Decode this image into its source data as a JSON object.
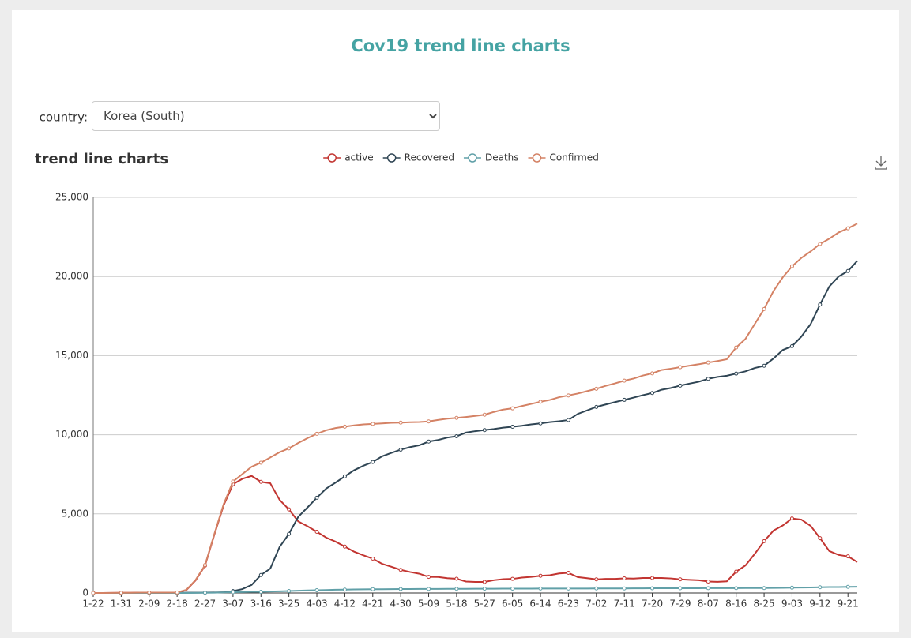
{
  "page": {
    "title": "Cov19 trend line charts",
    "country_label": "country:",
    "country_value": "Korea (South)",
    "chart_heading": "trend line charts"
  },
  "chart_data": {
    "type": "line",
    "categories": [
      "1-22",
      null,
      null,
      "1-31",
      null,
      null,
      "2-09",
      null,
      null,
      "2-18",
      null,
      null,
      "2-27",
      null,
      null,
      "3-07",
      null,
      null,
      "3-16",
      null,
      null,
      "3-25",
      null,
      null,
      "4-03",
      null,
      null,
      "4-12",
      null,
      null,
      "4-21",
      null,
      null,
      "4-30",
      null,
      null,
      "5-09",
      null,
      null,
      "5-18",
      null,
      null,
      "5-27",
      null,
      null,
      "6-05",
      null,
      null,
      "6-14",
      null,
      null,
      "6-23",
      null,
      null,
      "7-02",
      null,
      null,
      "7-11",
      null,
      null,
      "7-20",
      null,
      null,
      "7-29",
      null,
      null,
      "8-07",
      null,
      null,
      "8-16",
      null,
      null,
      "8-25",
      null,
      null,
      "9-03",
      null,
      null,
      "9-12",
      null,
      null,
      "9-21",
      null
    ],
    "series": [
      {
        "name": "active",
        "color": "#c23531",
        "values": [
          1,
          2,
          4,
          11,
          15,
          23,
          24,
          21,
          19,
          19,
          186,
          807,
          1731,
          3689,
          5545,
          6875,
          7212,
          7397,
          7024,
          6934,
          5884,
          5281,
          4523,
          4216,
          3867,
          3500,
          3246,
          2930,
          2609,
          2379,
          2169,
          1843,
          1654,
          1459,
          1325,
          1218,
          1016,
          1008,
          937,
          898,
          723,
          698,
          701,
          808,
          872,
          889,
          972,
          1016,
          1088,
          1123,
          1237,
          1272,
          1003,
          938,
          860,
          892,
          894,
          925,
          909,
          947,
          946,
          950,
          920,
          862,
          832,
          802,
          723,
          702,
          736,
          1347,
          1743,
          2474,
          3275,
          3939,
          4265,
          4710,
          4636,
          4238,
          3463,
          2646,
          2404,
          2312,
          1958
        ]
      },
      {
        "name": "Recovered",
        "color": "#2f4554",
        "values": [
          0,
          0,
          0,
          0,
          0,
          0,
          3,
          7,
          9,
          12,
          16,
          18,
          22,
          30,
          41,
          118,
          247,
          510,
          1137,
          1540,
          2909,
          3730,
          4811,
          5408,
          6021,
          6598,
          6973,
          7368,
          7757,
          8042,
          8277,
          8635,
          8854,
          9059,
          9218,
          9333,
          9568,
          9670,
          9821,
          9904,
          10135,
          10226,
          10295,
          10363,
          10446,
          10506,
          10566,
          10654,
          10718,
          10795,
          10856,
          10930,
          11317,
          11537,
          11759,
          11914,
          12065,
          12204,
          12348,
          12502,
          12636,
          12844,
          12957,
          13107,
          13233,
          13352,
          13535,
          13654,
          13729,
          13863,
          14006,
          14219,
          14357,
          14817,
          15356,
          15600,
          16200,
          17000,
          18229,
          19373,
          20002,
          20345,
          20988
        ]
      },
      {
        "name": "Deaths",
        "color": "#61a0a8",
        "values": [
          0,
          0,
          0,
          0,
          0,
          0,
          0,
          0,
          0,
          0,
          2,
          8,
          13,
          17,
          35,
          48,
          54,
          72,
          75,
          91,
          104,
          126,
          144,
          162,
          174,
          186,
          204,
          214,
          225,
          232,
          237,
          240,
          244,
          247,
          250,
          255,
          256,
          258,
          260,
          263,
          264,
          266,
          269,
          270,
          272,
          273,
          276,
          277,
          279,
          280,
          280,
          282,
          282,
          282,
          285,
          285,
          285,
          288,
          294,
          296,
          297,
          298,
          298,
          300,
          301,
          302,
          304,
          304,
          305,
          305,
          309,
          309,
          313,
          321,
          326,
          334,
          341,
          350,
          363,
          372,
          377,
          388,
          395
        ]
      },
      {
        "name": "Confirmed",
        "color": "#d48265",
        "values": [
          1,
          2,
          4,
          11,
          15,
          23,
          27,
          28,
          28,
          31,
          204,
          833,
          1766,
          3736,
          5621,
          7041,
          7513,
          7979,
          8236,
          8565,
          8897,
          9137,
          9478,
          9786,
          10062,
          10284,
          10423,
          10512,
          10591,
          10653,
          10683,
          10718,
          10752,
          10765,
          10793,
          10806,
          10840,
          10936,
          11018,
          11065,
          11122,
          11190,
          11265,
          11441,
          11590,
          11668,
          11814,
          11947,
          12085,
          12198,
          12373,
          12484,
          12602,
          12757,
          12904,
          13091,
          13244,
          13417,
          13551,
          13745,
          13879,
          14092,
          14175,
          14269,
          14366,
          14456,
          14562,
          14660,
          14770,
          15515,
          16058,
          17002,
          17945,
          19077,
          19947,
          20644,
          21177,
          21588,
          22055,
          22391,
          22783,
          23045,
          23341
        ]
      }
    ],
    "ylim": [
      0,
      25000
    ],
    "yticks": [
      0,
      {
        "value": 5000,
        "label": "5,000"
      },
      {
        "value": 10000,
        "label": "10,000"
      },
      {
        "value": 15000,
        "label": "15,000"
      },
      {
        "value": 20000,
        "label": "20,000"
      },
      {
        "value": 25000,
        "label": "25,000"
      }
    ],
    "grid": true,
    "legend": "top"
  }
}
